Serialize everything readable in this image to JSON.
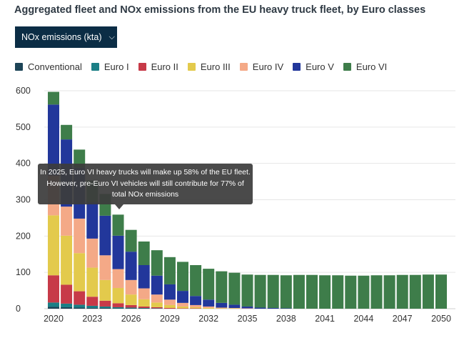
{
  "title": "Aggregated fleet and NOx emissions from the EU heavy truck fleet, by Euro classes",
  "dropdown": {
    "label": "NOx emissions (kta)",
    "chevron": "⌄"
  },
  "tooltip": {
    "line1": "In 2025, Euro VI heavy trucks will make up 58% of the EU fleet.",
    "line2": "However, pre-Euro VI vehicles will still contribute for 77% of",
    "line3": "total NOx emissions"
  },
  "colors": {
    "Conventional": "#1d4457",
    "Euro I": "#1b7f86",
    "Euro II": "#c73a48",
    "Euro III": "#e3ca4c",
    "Euro IV": "#f4a987",
    "Euro V": "#22379b",
    "Euro VI": "#3e7d4a"
  },
  "chart_data": {
    "type": "bar",
    "stacked": true,
    "title": "Aggregated fleet and NOx emissions from the EU heavy truck fleet, by Euro classes",
    "ylabel": "NOx emissions (kta)",
    "ylim": [
      0,
      600
    ],
    "yticks": [
      "0",
      "100",
      "200",
      "300",
      "400",
      "500",
      "600"
    ],
    "xticks": [
      "2020",
      "2023",
      "2026",
      "2029",
      "2032",
      "2035",
      "2038",
      "2041",
      "2044",
      "2047",
      "2050"
    ],
    "categories": [
      2020,
      2021,
      2022,
      2023,
      2024,
      2025,
      2026,
      2027,
      2028,
      2029,
      2030,
      2031,
      2032,
      2033,
      2034,
      2035,
      2036,
      2037,
      2038,
      2039,
      2040,
      2041,
      2042,
      2043,
      2044,
      2045,
      2046,
      2047,
      2048,
      2049,
      2050
    ],
    "legend": [
      "Conventional",
      "Euro I",
      "Euro II",
      "Euro III",
      "Euro IV",
      "Euro V",
      "Euro VI"
    ],
    "series": [
      {
        "name": "Conventional",
        "values": [
          5,
          4,
          3,
          2,
          2,
          1,
          1,
          1,
          0,
          0,
          0,
          0,
          0,
          0,
          0,
          0,
          0,
          0,
          0,
          0,
          0,
          0,
          0,
          0,
          0,
          0,
          0,
          0,
          0,
          0,
          0
        ]
      },
      {
        "name": "Euro I",
        "values": [
          12,
          10,
          8,
          6,
          4,
          3,
          2,
          1,
          1,
          0,
          0,
          0,
          0,
          0,
          0,
          0,
          0,
          0,
          0,
          0,
          0,
          0,
          0,
          0,
          0,
          0,
          0,
          0,
          0,
          0,
          0
        ]
      },
      {
        "name": "Euro II",
        "values": [
          75,
          52,
          37,
          25,
          16,
          11,
          7,
          4,
          3,
          2,
          1,
          1,
          0,
          0,
          0,
          0,
          0,
          0,
          0,
          0,
          0,
          0,
          0,
          0,
          0,
          0,
          0,
          0,
          0,
          0,
          0
        ]
      },
      {
        "name": "Euro III",
        "values": [
          165,
          135,
          105,
          80,
          57,
          42,
          29,
          20,
          13,
          8,
          5,
          3,
          2,
          1,
          1,
          0,
          0,
          0,
          0,
          0,
          0,
          0,
          0,
          0,
          0,
          0,
          0,
          0,
          0,
          0,
          0
        ]
      },
      {
        "name": "Euro IV",
        "values": [
          110,
          80,
          95,
          80,
          68,
          52,
          40,
          30,
          22,
          15,
          10,
          6,
          4,
          2,
          1,
          1,
          0,
          0,
          0,
          0,
          0,
          0,
          0,
          0,
          0,
          0,
          0,
          0,
          0,
          0,
          0
        ]
      },
      {
        "name": "Euro V",
        "values": [
          195,
          185,
          140,
          100,
          109,
          92,
          78,
          64,
          52,
          42,
          33,
          25,
          19,
          13,
          9,
          5,
          3,
          2,
          1,
          0,
          0,
          0,
          0,
          0,
          0,
          0,
          0,
          0,
          0,
          0,
          0
        ]
      },
      {
        "name": "Euro VI",
        "values": [
          35,
          40,
          50,
          60,
          60,
          58,
          60,
          65,
          70,
          75,
          80,
          85,
          85,
          87,
          88,
          88,
          90,
          91,
          91,
          93,
          93,
          92,
          92,
          91,
          91,
          92,
          92,
          93,
          93,
          94,
          94
        ]
      }
    ],
    "annotation": "In 2025, Euro VI heavy trucks will make up 58% of the EU fleet. However, pre-Euro VI vehicles will still contribute for 77% of total NOx emissions"
  }
}
